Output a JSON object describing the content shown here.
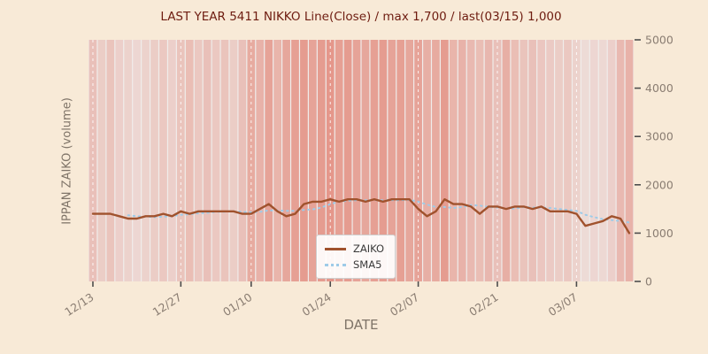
{
  "figure": {
    "background": "#f8ead7"
  },
  "chart_data": {
    "type": "line",
    "title": "LAST YEAR 5411 NIKKO Line(Close) / max 1,700 / last(03/15) 1,000",
    "xlabel": "DATE",
    "ylabel": "IPPAN ZAIKO (volume)",
    "ylim": [
      0,
      5000
    ],
    "y_ticks": [
      0,
      1000,
      2000,
      3000,
      4000,
      5000
    ],
    "x_tick_labels": [
      "12/13",
      "12/27",
      "01/10",
      "01/24",
      "02/07",
      "02/21",
      "03/07"
    ],
    "x_tick_indices": [
      0,
      10,
      18,
      27,
      37,
      46,
      55
    ],
    "grid": "white dashed vertical lines at ticks",
    "legend_position": "lower center",
    "dates": [
      "12/13",
      "12/14",
      "12/15",
      "12/16",
      "12/17",
      "12/20",
      "12/21",
      "12/22",
      "12/23",
      "12/24",
      "12/27",
      "12/28",
      "12/29",
      "12/30",
      "01/04",
      "01/05",
      "01/06",
      "01/07",
      "01/11",
      "01/12",
      "01/13",
      "01/14",
      "01/17",
      "01/18",
      "01/19",
      "01/20",
      "01/21",
      "01/24",
      "01/25",
      "01/26",
      "01/27",
      "01/28",
      "01/31",
      "02/01",
      "02/02",
      "02/03",
      "02/04",
      "02/07",
      "02/08",
      "02/09",
      "02/10",
      "02/14",
      "02/15",
      "02/16",
      "02/17",
      "02/18",
      "02/21",
      "02/22",
      "02/24",
      "02/25",
      "02/28",
      "03/01",
      "03/02",
      "03/03",
      "03/04",
      "03/07",
      "03/08",
      "03/09",
      "03/10",
      "03/11",
      "03/14",
      "03/15"
    ],
    "series": [
      {
        "name": "ZAIKO",
        "color": "#a0522d",
        "style": "solid",
        "values": [
          1400,
          1400,
          1400,
          1350,
          1300,
          1300,
          1350,
          1350,
          1400,
          1350,
          1450,
          1400,
          1450,
          1450,
          1450,
          1450,
          1450,
          1400,
          1400,
          1500,
          1600,
          1450,
          1350,
          1400,
          1600,
          1650,
          1650,
          1700,
          1650,
          1700,
          1700,
          1650,
          1700,
          1650,
          1700,
          1700,
          1700,
          1500,
          1350,
          1450,
          1700,
          1600,
          1600,
          1550,
          1400,
          1550,
          1550,
          1500,
          1550,
          1550,
          1500,
          1550,
          1450,
          1450,
          1450,
          1400,
          1150,
          1200,
          1250,
          1350,
          1300,
          1000
        ]
      },
      {
        "name": "SMA5",
        "color": "#9ecbe8",
        "style": "dotted",
        "derived": "5-period simple moving average of ZAIKO"
      }
    ],
    "background_bands": {
      "color": "#dc5a45",
      "intensities": [
        0.3,
        0.22,
        0.28,
        0.2,
        0.18,
        0.15,
        0.18,
        0.22,
        0.25,
        0.2,
        0.28,
        0.32,
        0.25,
        0.3,
        0.25,
        0.28,
        0.22,
        0.3,
        0.45,
        0.4,
        0.5,
        0.38,
        0.48,
        0.52,
        0.55,
        0.5,
        0.55,
        0.58,
        0.52,
        0.55,
        0.5,
        0.48,
        0.52,
        0.55,
        0.5,
        0.52,
        0.48,
        0.5,
        0.42,
        0.45,
        0.55,
        0.38,
        0.4,
        0.35,
        0.32,
        0.36,
        0.3,
        0.42,
        0.32,
        0.28,
        0.3,
        0.26,
        0.24,
        0.22,
        0.25,
        0.18,
        0.12,
        0.15,
        0.14,
        0.2,
        0.35,
        0.4
      ]
    },
    "max_value": "1,700",
    "last_value": "1,000",
    "last_date": "03/15"
  }
}
